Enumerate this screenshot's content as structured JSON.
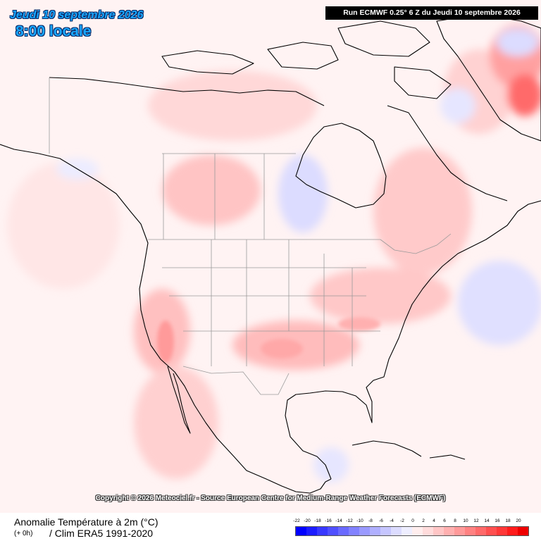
{
  "header": {
    "date": "Jeudi 10 septembre 2026",
    "local_time": "8:00 locale",
    "run_info": "Run ECMWF 0.25° 6 Z du Jeudi 10 septembre 2026"
  },
  "map": {
    "region": "North America",
    "variable": "2m temperature anomaly",
    "copyright": "Copyright © 2026 Meteociel.fr - Source European Centre for Medium-Range Weather Forecasts (ECMWF)"
  },
  "footer": {
    "title": "Anomalie Température à 2m (°C)",
    "lead": "(+ 0h)",
    "clim": "/ Clim ERA5 1991-2020"
  },
  "legend": {
    "labels": [
      "-22",
      "-20",
      "-18",
      "-16",
      "-14",
      "-12",
      "-10",
      "-8",
      "-6",
      "-4",
      "-2",
      "0",
      "2",
      "4",
      "6",
      "8",
      "10",
      "12",
      "14",
      "16",
      "18",
      "20"
    ],
    "colors": [
      "#0000ff",
      "#1c1cff",
      "#3838ff",
      "#5050ff",
      "#6a6aff",
      "#8282ff",
      "#9a9aff",
      "#b0b0ff",
      "#c6c6ff",
      "#dcdcff",
      "#eeeeff",
      "#ffeeee",
      "#ffdcdc",
      "#ffc6c6",
      "#ffb0b0",
      "#ff9a9a",
      "#ff8282",
      "#ff6a6a",
      "#ff5050",
      "#ff3838",
      "#ff1c1c",
      "#ee0000"
    ]
  }
}
